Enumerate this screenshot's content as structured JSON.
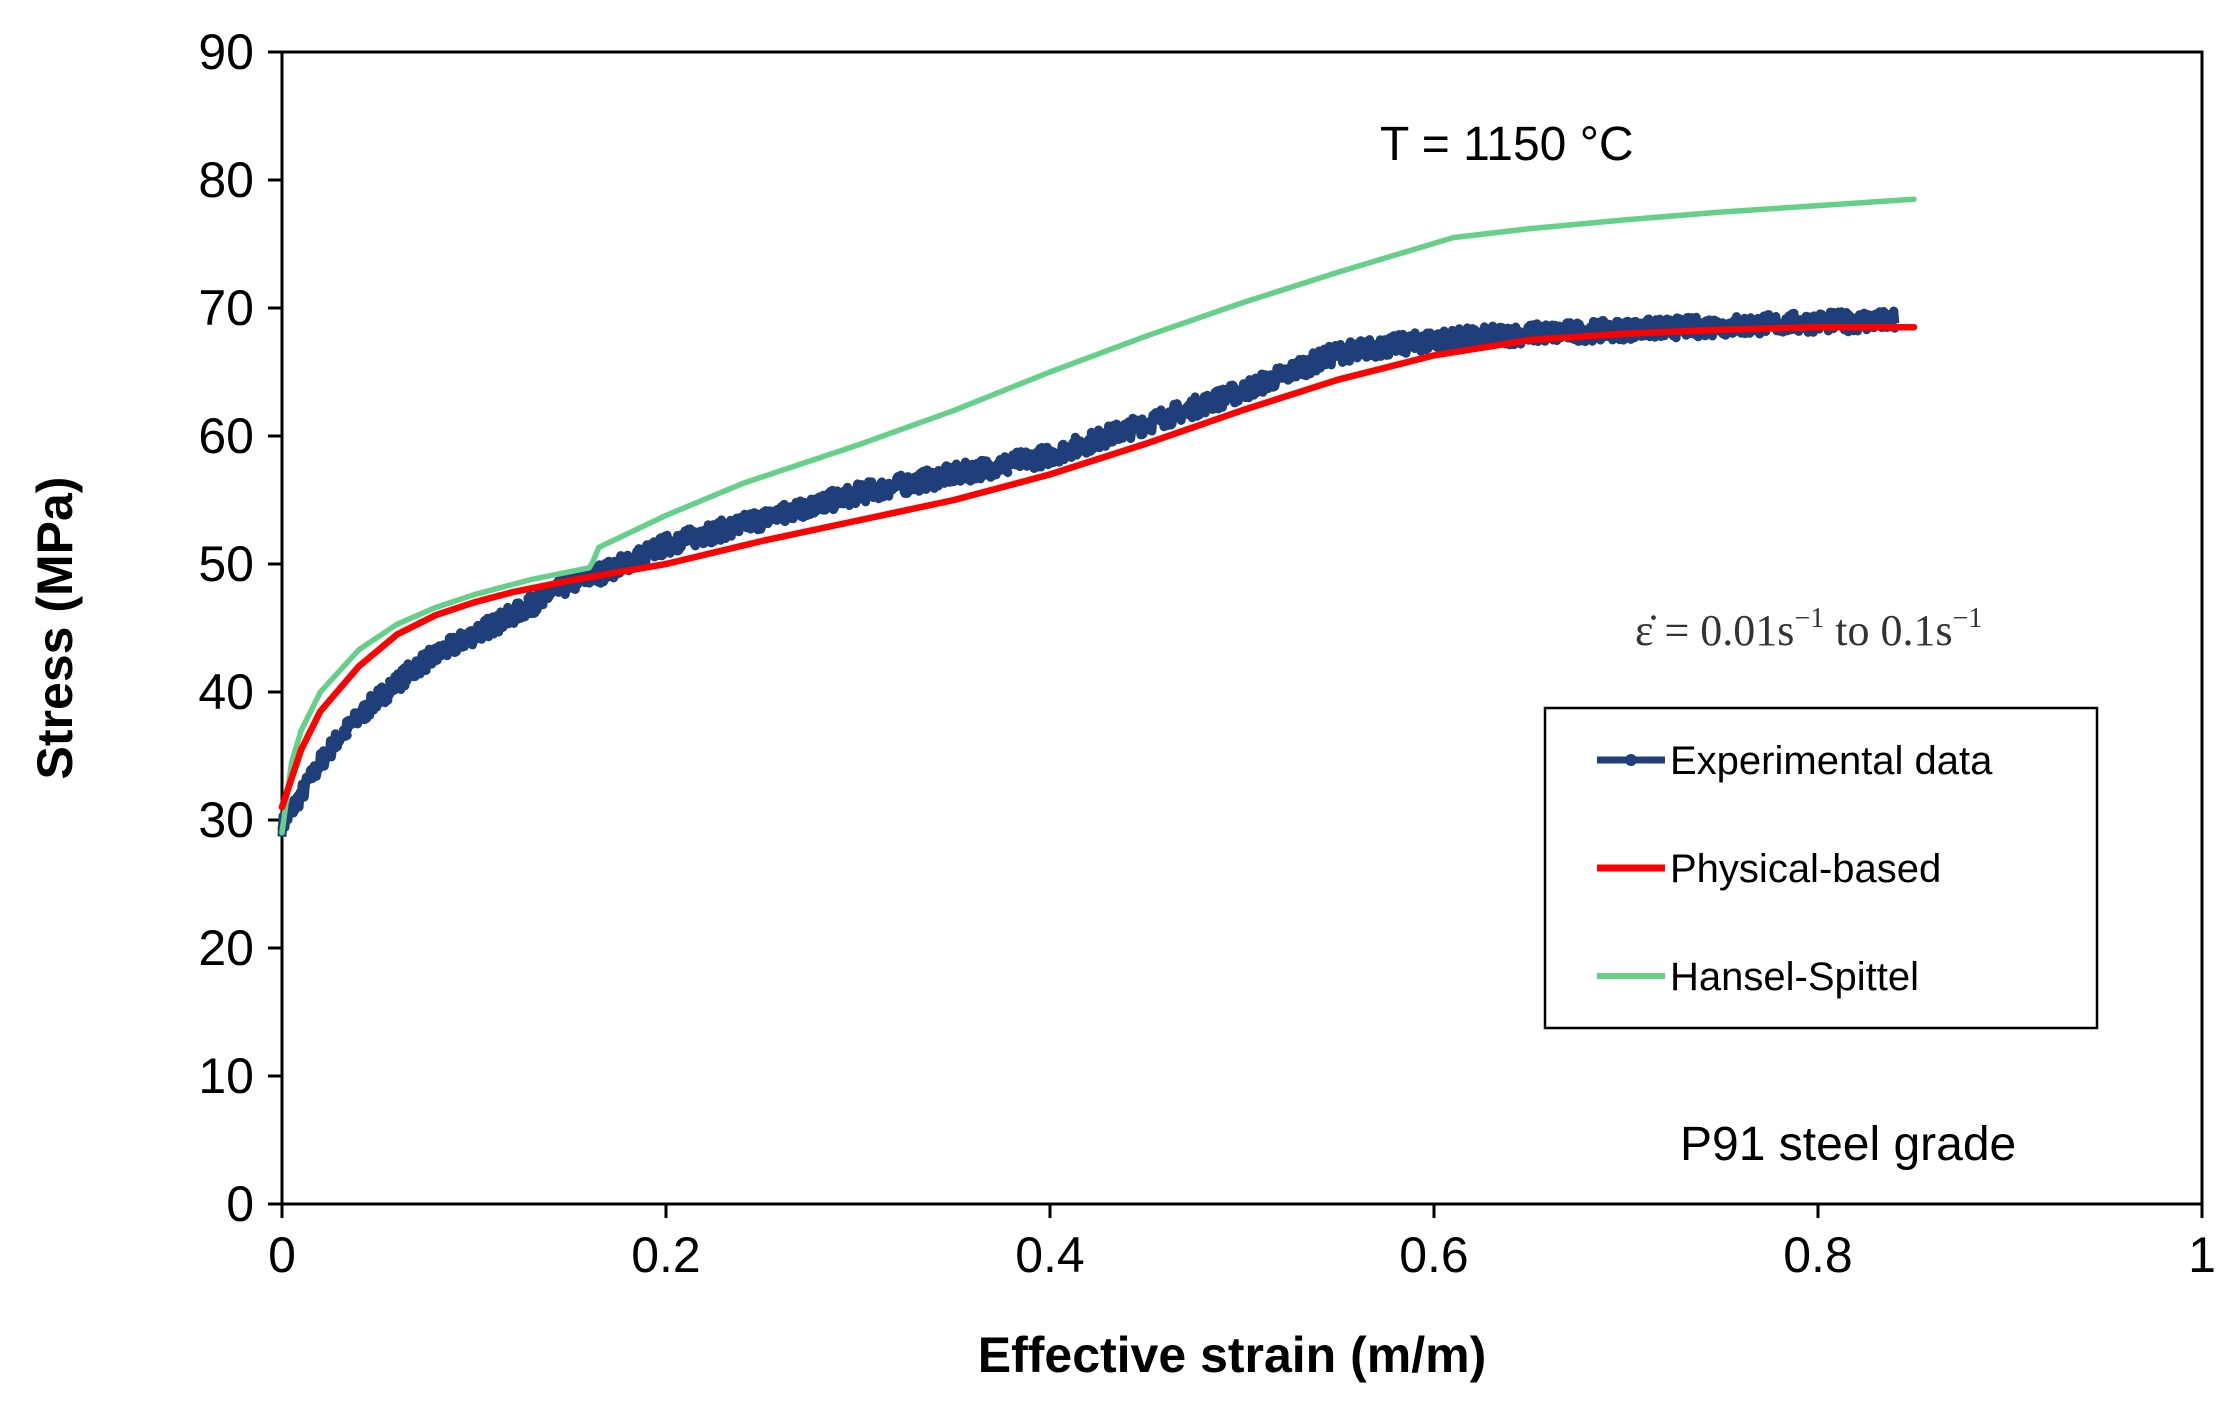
{
  "chart_data": {
    "type": "line",
    "title": "",
    "xlabel": "Effective strain (m/m)",
    "ylabel": "Stress  (MPa)",
    "xlim": [
      0,
      1
    ],
    "ylim": [
      0,
      90
    ],
    "xticks": [
      0,
      0.2,
      0.4,
      0.6,
      0.8,
      1
    ],
    "xtick_labels": [
      "0",
      "0.2",
      "0.4",
      "0.6",
      "0.8",
      "1"
    ],
    "yticks": [
      0,
      10,
      20,
      30,
      40,
      50,
      60,
      70,
      80,
      90
    ],
    "ytick_labels": [
      "0",
      "10",
      "20",
      "30",
      "40",
      "50",
      "60",
      "70",
      "80",
      "90"
    ],
    "grid": false,
    "legend_position": "right-middle",
    "annotations": {
      "temperature": "T  =  1150 °C",
      "strain_rate_prefix": "ε̇ = 0.01s",
      "strain_rate_exp1": "−1",
      "strain_rate_mid": " to 0.1s",
      "strain_rate_exp2": "−1",
      "material": "P91  steel  grade"
    },
    "series": [
      {
        "name": "Experimental data",
        "color": "#1f3f7a",
        "marker": "dot",
        "noisy": true,
        "x": [
          0,
          0.01,
          0.02,
          0.03,
          0.05,
          0.07,
          0.1,
          0.12,
          0.15,
          0.17,
          0.2,
          0.25,
          0.3,
          0.35,
          0.4,
          0.45,
          0.5,
          0.55,
          0.6,
          0.65,
          0.7,
          0.75,
          0.8,
          0.84
        ],
        "y": [
          29.5,
          32,
          34.5,
          36.5,
          39.5,
          42,
          44.5,
          46,
          48.5,
          49.5,
          51.5,
          53.5,
          55.5,
          57,
          58.5,
          61,
          63.5,
          66.5,
          67.5,
          68,
          68.3,
          68.6,
          68.9,
          69
        ]
      },
      {
        "name": "Physical-based",
        "color": "#ff0000",
        "x": [
          0,
          0.01,
          0.02,
          0.04,
          0.06,
          0.08,
          0.1,
          0.12,
          0.15,
          0.2,
          0.25,
          0.3,
          0.35,
          0.4,
          0.45,
          0.5,
          0.55,
          0.6,
          0.65,
          0.7,
          0.75,
          0.8,
          0.85
        ],
        "y": [
          31,
          35.5,
          38.5,
          42,
          44.5,
          46,
          47,
          47.8,
          48.7,
          50,
          51.8,
          53.4,
          55,
          57,
          59.4,
          62,
          64.4,
          66.3,
          67.5,
          68,
          68.3,
          68.5,
          68.5
        ]
      },
      {
        "name": "Hansel-Spittel",
        "color": "#66d08a",
        "x": [
          0,
          0.005,
          0.01,
          0.02,
          0.04,
          0.06,
          0.08,
          0.1,
          0.13,
          0.16,
          0.162,
          0.165,
          0.2,
          0.24,
          0.3,
          0.35,
          0.4,
          0.45,
          0.5,
          0.55,
          0.61,
          0.65,
          0.7,
          0.75,
          0.8,
          0.85
        ],
        "y": [
          29,
          34.5,
          37,
          40,
          43.3,
          45.3,
          46.6,
          47.6,
          48.8,
          49.7,
          50.2,
          51.3,
          53.8,
          56.3,
          59.3,
          62,
          65,
          67.8,
          70.4,
          72.8,
          75.5,
          76.2,
          76.9,
          77.5,
          78,
          78.5
        ]
      }
    ]
  }
}
